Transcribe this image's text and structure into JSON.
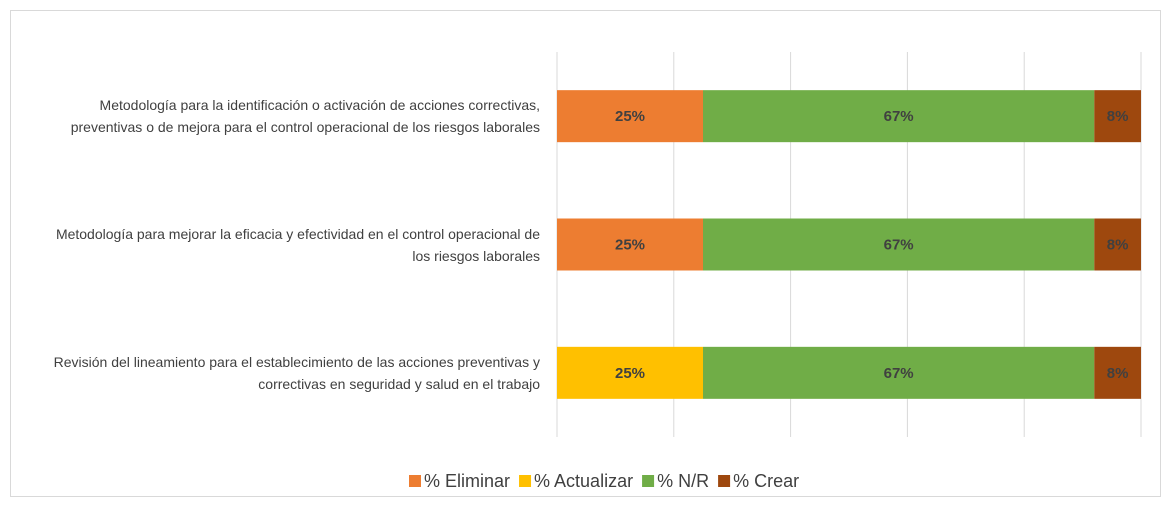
{
  "chart_data": {
    "type": "stacked-bar-horizontal",
    "categories": [
      "Metodología  para la identificación o activación de acciones correctivas, preventivas o de mejora para el control operacional de los riesgos laborales",
      "Metodología para mejorar la eficacia y efectividad en el control operacional de los riesgos laborales",
      "Revisión del lineamiento para el establecimiento de las acciones preventivas y correctivas en seguridad y salud en el trabajo"
    ],
    "series": [
      {
        "name": "% Eliminar",
        "color": "#ed7d31",
        "values": [
          25,
          25,
          0
        ],
        "value_labels": [
          "25%",
          "25%",
          null
        ]
      },
      {
        "name": "% Actualizar",
        "color": "#ffc000",
        "values": [
          0,
          0,
          25
        ],
        "value_labels": [
          null,
          null,
          "25%"
        ]
      },
      {
        "name": "% N/R",
        "color": "#70ad47",
        "values": [
          67,
          67,
          67
        ],
        "value_labels": [
          "67%",
          "67%",
          "67%"
        ]
      },
      {
        "name": "% Crear",
        "color": "#9e480e",
        "values": [
          8,
          8,
          8
        ],
        "value_labels": [
          "8%",
          "8%",
          "8%"
        ]
      }
    ],
    "xlim": [
      0,
      100
    ],
    "xticks": [
      0,
      20,
      40,
      60,
      80,
      100
    ],
    "grid": true,
    "legend": "bottom"
  }
}
